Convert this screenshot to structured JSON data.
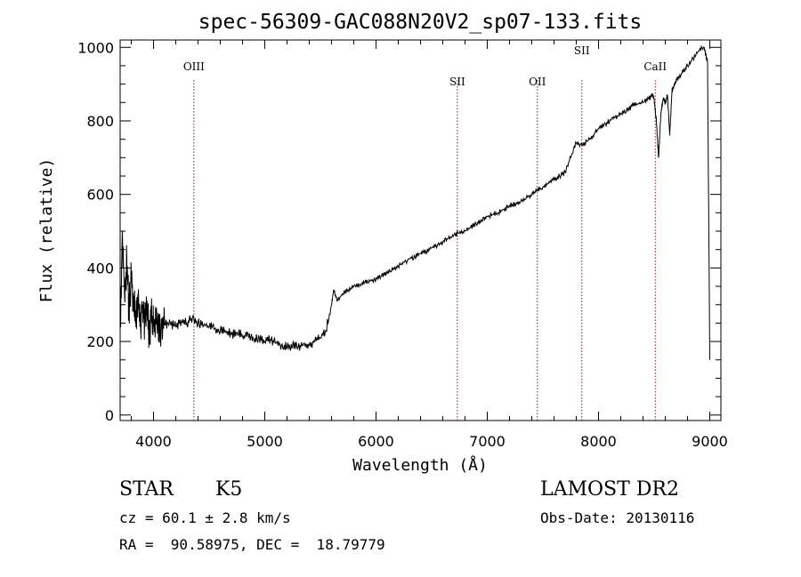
{
  "chart_data": {
    "type": "line",
    "title": "spec-56309-GAC088N20V2_sp07-133.fits",
    "xlabel": "Wavelength (Å)",
    "ylabel": "Flux (relative)",
    "xlim": [
      3700,
      9100
    ],
    "ylim": [
      -15,
      1020
    ],
    "xticks": [
      4000,
      5000,
      6000,
      7000,
      8000,
      9000
    ],
    "yticks": [
      0,
      200,
      400,
      600,
      800,
      1000
    ],
    "grid": false,
    "series": [
      {
        "x": [
          3700,
          3720,
          3740,
          3760,
          3780,
          3800,
          3820,
          3840,
          3860,
          3880,
          3900,
          3920,
          3940,
          3960,
          3980,
          4000,
          4030,
          4060,
          4100,
          4150,
          4200,
          4250,
          4300,
          4350,
          4400,
          4450,
          4500,
          4550,
          4600,
          4650,
          4700,
          4750,
          4800,
          4850,
          4900,
          4950,
          5000,
          5050,
          5100,
          5150,
          5200,
          5250,
          5300,
          5350,
          5400,
          5450,
          5500,
          5550,
          5600,
          5620,
          5650,
          5700,
          5750,
          5800,
          5850,
          5900,
          5950,
          6000,
          6050,
          6100,
          6150,
          6200,
          6250,
          6300,
          6350,
          6400,
          6450,
          6500,
          6550,
          6600,
          6650,
          6700,
          6750,
          6800,
          6850,
          6900,
          6950,
          7000,
          7050,
          7100,
          7150,
          7200,
          7250,
          7300,
          7350,
          7400,
          7450,
          7500,
          7550,
          7600,
          7650,
          7700,
          7750,
          7800,
          7850,
          7900,
          7950,
          8000,
          8050,
          8100,
          8150,
          8200,
          8250,
          8300,
          8350,
          8400,
          8450,
          8480,
          8500,
          8520,
          8540,
          8560,
          8580,
          8600,
          8620,
          8640,
          8660,
          8680,
          8700,
          8750,
          8800,
          8850,
          8900,
          8950,
          8980,
          9000
        ],
        "y": [
          230,
          500,
          320,
          420,
          280,
          380,
          300,
          260,
          330,
          240,
          300,
          250,
          280,
          230,
          270,
          240,
          260,
          230,
          245,
          250,
          240,
          255,
          250,
          265,
          250,
          245,
          240,
          235,
          230,
          225,
          220,
          225,
          215,
          220,
          205,
          210,
          200,
          205,
          195,
          190,
          185,
          190,
          185,
          195,
          190,
          200,
          210,
          230,
          300,
          340,
          310,
          330,
          340,
          350,
          355,
          360,
          365,
          370,
          380,
          385,
          395,
          405,
          415,
          425,
          430,
          440,
          445,
          455,
          460,
          470,
          480,
          490,
          495,
          500,
          510,
          520,
          530,
          540,
          545,
          550,
          560,
          570,
          575,
          580,
          590,
          600,
          610,
          620,
          630,
          640,
          650,
          660,
          700,
          740,
          735,
          745,
          760,
          780,
          790,
          800,
          810,
          820,
          830,
          840,
          845,
          850,
          860,
          870,
          860,
          800,
          700,
          820,
          860,
          850,
          870,
          760,
          880,
          900,
          910,
          930,
          950,
          970,
          990,
          1000,
          960,
          150
        ]
      }
    ],
    "line_markers": [
      {
        "label": "OIII",
        "x": 4363
      },
      {
        "label": "SII",
        "x": 6731
      },
      {
        "label": "OII",
        "x": 7450
      },
      {
        "label": "SII",
        "x": 7850
      },
      {
        "label": "CaII",
        "x": 8510
      }
    ]
  },
  "info": {
    "class_text": "STAR",
    "subclass_text": "K5",
    "survey": "LAMOST DR2",
    "cz_text": "cz = 60.1 ± 2.8 km/s",
    "obs_date_text": "Obs-Date: 20130116",
    "coords_text": "RA =  90.58975, DEC =  18.79779"
  }
}
